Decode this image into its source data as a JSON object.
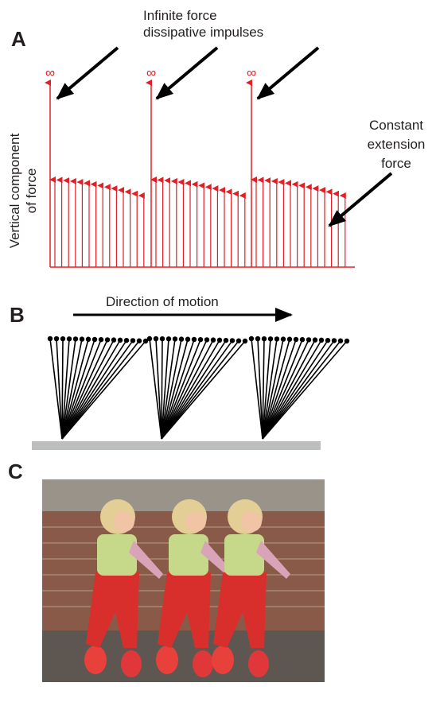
{
  "panel_a": {
    "label": "A",
    "impulse_label": [
      "Infinite force",
      "dissipative impulses"
    ],
    "infinity_marks": [
      "∞",
      "∞",
      "∞"
    ],
    "y_axis_label": [
      "Vertical component",
      "of force"
    ],
    "extension_label": [
      "Constant",
      "extension",
      "force"
    ]
  },
  "panel_b": {
    "label": "B",
    "motion_label": "Direction of motion"
  },
  "panel_c": {
    "label": "C"
  }
}
